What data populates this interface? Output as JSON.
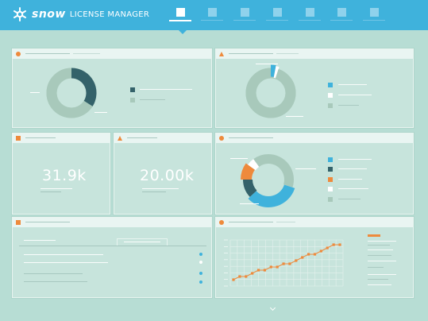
{
  "brand": {
    "logo_word": "snow",
    "product": "LICENSE MANAGER",
    "icon": "snowflake-icon"
  },
  "nav": {
    "tabs": [
      {
        "icon": "dashboard-icon",
        "active": true
      },
      {
        "icon": "nav-icon-2",
        "active": false
      },
      {
        "icon": "nav-icon-3",
        "active": false
      },
      {
        "icon": "nav-icon-4",
        "active": false
      },
      {
        "icon": "nav-icon-5",
        "active": false
      },
      {
        "icon": "nav-icon-6",
        "active": false
      },
      {
        "icon": "nav-icon-7",
        "active": false
      }
    ]
  },
  "colors": {
    "brand_blue": "#3fb2dc",
    "accent_orange": "#ee8a3c",
    "dark_teal": "#34626a",
    "pale_green": "#a8c9bb",
    "background": "#b7ddd4"
  },
  "widgets": {
    "kpi_1": {
      "value": "31.9k"
    },
    "kpi_2": {
      "value": "20.00k"
    }
  },
  "chart_data": [
    {
      "type": "pie",
      "slices": [
        {
          "color": "#34626a",
          "value": 34
        },
        {
          "color": "#a8c9bb",
          "value": 66
        }
      ]
    },
    {
      "type": "pie",
      "slices": [
        {
          "color": "#3fb2dc",
          "value": 3
        },
        {
          "color": "#ffffff",
          "value": 2
        },
        {
          "color": "#a8c9bb",
          "value": 95
        }
      ]
    },
    {
      "type": "pie",
      "slices": [
        {
          "color": "#a8c9bb",
          "value": 30
        },
        {
          "color": "#3fb2dc",
          "value": 33
        },
        {
          "color": "#34626a",
          "value": 12
        },
        {
          "color": "#ee8a3c",
          "value": 10
        },
        {
          "color": "#ffffff",
          "value": 5
        },
        {
          "color": "#a8c9bb",
          "value": 10
        }
      ]
    },
    {
      "type": "line",
      "values": [
        1,
        2,
        2,
        3,
        4,
        4,
        5,
        5,
        6,
        6,
        7,
        8,
        9,
        9,
        10,
        11,
        12,
        12
      ]
    }
  ]
}
